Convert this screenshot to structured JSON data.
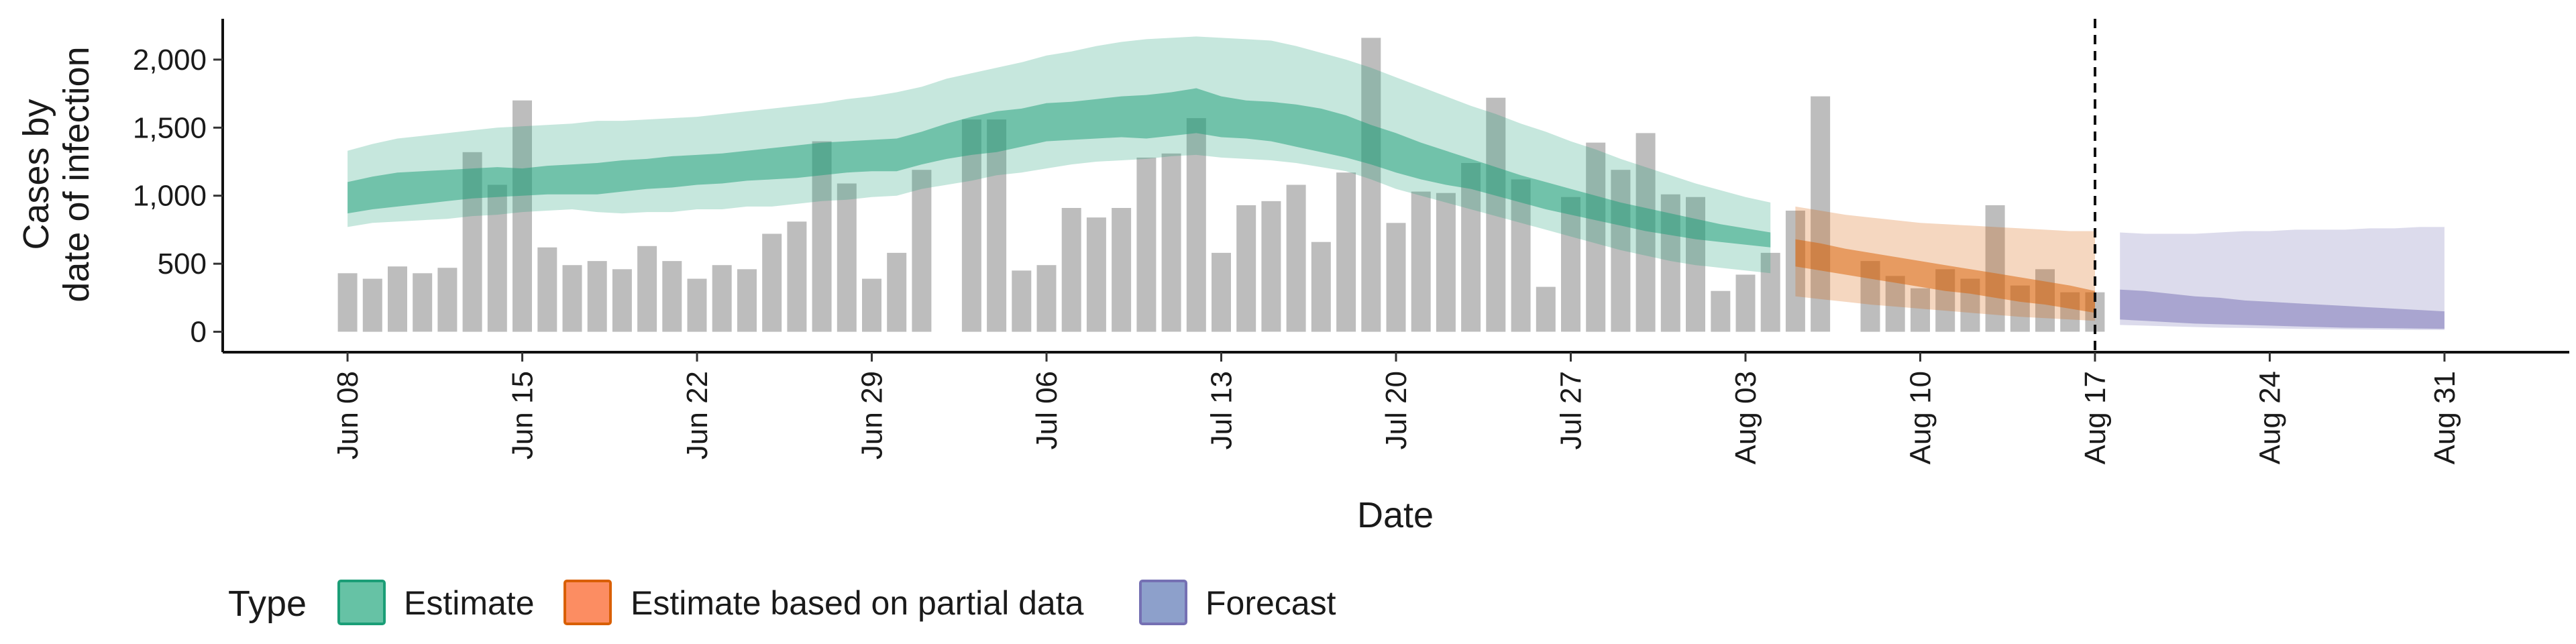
{
  "chart_data": {
    "type": "bar",
    "xlabel": "Date",
    "ylabel_lines": [
      "Cases by",
      "date of infection"
    ],
    "ylim": [
      -150,
      2300
    ],
    "y_ticks": [
      0,
      500,
      1000,
      1500,
      2000
    ],
    "y_tick_labels": [
      "0",
      "500",
      "1,000",
      "1,500",
      "2,000"
    ],
    "x_start": "2020-06-08",
    "x_ticks": [
      "Jun 08",
      "Jun 15",
      "Jun 22",
      "Jun 29",
      "Jul 06",
      "Jul 13",
      "Jul 20",
      "Jul 27",
      "Aug 03",
      "Aug 10",
      "Aug 17",
      "Aug 24",
      "Aug 31"
    ],
    "x_tick_dates": [
      "2020-06-08",
      "2020-06-15",
      "2020-06-22",
      "2020-06-29",
      "2020-07-06",
      "2020-07-13",
      "2020-07-20",
      "2020-07-27",
      "2020-08-03",
      "2020-08-10",
      "2020-08-17",
      "2020-08-24",
      "2020-08-31"
    ],
    "xlim": [
      "2020-06-03",
      "2020-09-05"
    ],
    "forecast_date": "2020-08-17",
    "bar_color": "#bdbdbd",
    "reported_cases": [
      430,
      390,
      480,
      430,
      470,
      1320,
      1080,
      1700,
      620,
      490,
      520,
      460,
      630,
      520,
      390,
      490,
      460,
      720,
      810,
      1400,
      1090,
      390,
      580,
      1190,
      0,
      1560,
      1560,
      450,
      490,
      910,
      840,
      910,
      1280,
      1310,
      1570,
      580,
      930,
      960,
      1080,
      660,
      1170,
      2160,
      800,
      1030,
      1020,
      1240,
      1720,
      1120,
      330,
      990,
      1390,
      1190,
      1460,
      1010,
      990,
      300,
      420,
      580,
      890,
      1730,
      0,
      520,
      410,
      320,
      460,
      390,
      930,
      340,
      460,
      290,
      290
    ],
    "legend": {
      "title": "Type",
      "entries": [
        {
          "label": "Estimate",
          "fill": "#66c2a5",
          "stroke": "#1b9e77"
        },
        {
          "label": "Estimate based on partial data",
          "fill": "#fc8d62",
          "stroke": "#d95f02"
        },
        {
          "label": "Forecast",
          "fill": "#8da0cb",
          "stroke": "#7570b3"
        }
      ]
    },
    "estimate": {
      "name": "Estimate",
      "color": "#1b9e77",
      "start": "2020-06-08",
      "lower90": [
        770,
        800,
        810,
        820,
        830,
        850,
        860,
        880,
        890,
        900,
        880,
        870,
        880,
        880,
        900,
        900,
        920,
        920,
        940,
        960,
        970,
        990,
        1000,
        1050,
        1080,
        1110,
        1150,
        1170,
        1200,
        1230,
        1250,
        1260,
        1270,
        1290,
        1300,
        1280,
        1270,
        1260,
        1240,
        1210,
        1180,
        1120,
        1050,
        1000,
        950,
        900,
        850,
        800,
        750,
        700,
        650,
        600,
        560,
        520,
        490,
        470,
        450,
        430
      ],
      "upper90": [
        1330,
        1380,
        1420,
        1440,
        1460,
        1480,
        1500,
        1510,
        1520,
        1530,
        1550,
        1550,
        1560,
        1570,
        1580,
        1600,
        1620,
        1640,
        1660,
        1680,
        1710,
        1730,
        1760,
        1800,
        1860,
        1900,
        1940,
        1980,
        2030,
        2060,
        2100,
        2130,
        2150,
        2160,
        2170,
        2160,
        2150,
        2140,
        2100,
        2050,
        2000,
        1940,
        1870,
        1800,
        1730,
        1660,
        1600,
        1530,
        1470,
        1400,
        1340,
        1270,
        1210,
        1150,
        1090,
        1040,
        990,
        950
      ],
      "lower50": [
        870,
        900,
        920,
        940,
        960,
        980,
        990,
        1000,
        1010,
        1010,
        1010,
        1030,
        1050,
        1060,
        1080,
        1090,
        1110,
        1120,
        1130,
        1150,
        1170,
        1180,
        1180,
        1230,
        1270,
        1300,
        1320,
        1360,
        1400,
        1410,
        1420,
        1430,
        1420,
        1440,
        1460,
        1430,
        1420,
        1400,
        1360,
        1320,
        1280,
        1230,
        1170,
        1120,
        1080,
        1050,
        1000,
        950,
        900,
        860,
        820,
        780,
        740,
        710,
        680,
        660,
        640,
        620
      ],
      "upper50": [
        1100,
        1140,
        1170,
        1180,
        1190,
        1200,
        1210,
        1200,
        1220,
        1230,
        1240,
        1260,
        1270,
        1290,
        1300,
        1310,
        1330,
        1350,
        1370,
        1390,
        1400,
        1410,
        1420,
        1470,
        1530,
        1580,
        1620,
        1640,
        1680,
        1690,
        1710,
        1730,
        1740,
        1760,
        1790,
        1730,
        1700,
        1690,
        1670,
        1640,
        1590,
        1520,
        1460,
        1390,
        1330,
        1270,
        1210,
        1150,
        1100,
        1050,
        1000,
        950,
        910,
        870,
        830,
        790,
        760,
        730
      ]
    },
    "partial": {
      "name": "Estimate based on partial data",
      "color": "#d95f02",
      "start": "2020-08-05",
      "lower90": [
        260,
        240,
        220,
        200,
        185,
        170,
        155,
        140,
        125,
        110,
        100,
        90,
        80
      ],
      "upper90": [
        920,
        890,
        860,
        840,
        820,
        800,
        790,
        780,
        770,
        760,
        750,
        740,
        740
      ],
      "lower50": [
        480,
        450,
        420,
        390,
        360,
        330,
        300,
        280,
        250,
        220,
        200,
        170,
        140
      ],
      "upper50": [
        680,
        650,
        610,
        580,
        550,
        520,
        490,
        460,
        430,
        400,
        370,
        340,
        300
      ]
    },
    "forecast": {
      "name": "Forecast",
      "color": "#7570b3",
      "start": "2020-08-18",
      "lower90": [
        50,
        45,
        40,
        35,
        30,
        28,
        25,
        22,
        20,
        18,
        16,
        15,
        14,
        13
      ],
      "upper90": [
        730,
        720,
        720,
        720,
        730,
        740,
        740,
        750,
        750,
        750,
        760,
        760,
        770,
        770
      ],
      "lower50": [
        90,
        80,
        70,
        60,
        55,
        50,
        45,
        40,
        35,
        30,
        28,
        26,
        24,
        22
      ],
      "upper50": [
        310,
        300,
        280,
        260,
        250,
        230,
        220,
        210,
        200,
        190,
        180,
        170,
        160,
        150
      ]
    }
  }
}
